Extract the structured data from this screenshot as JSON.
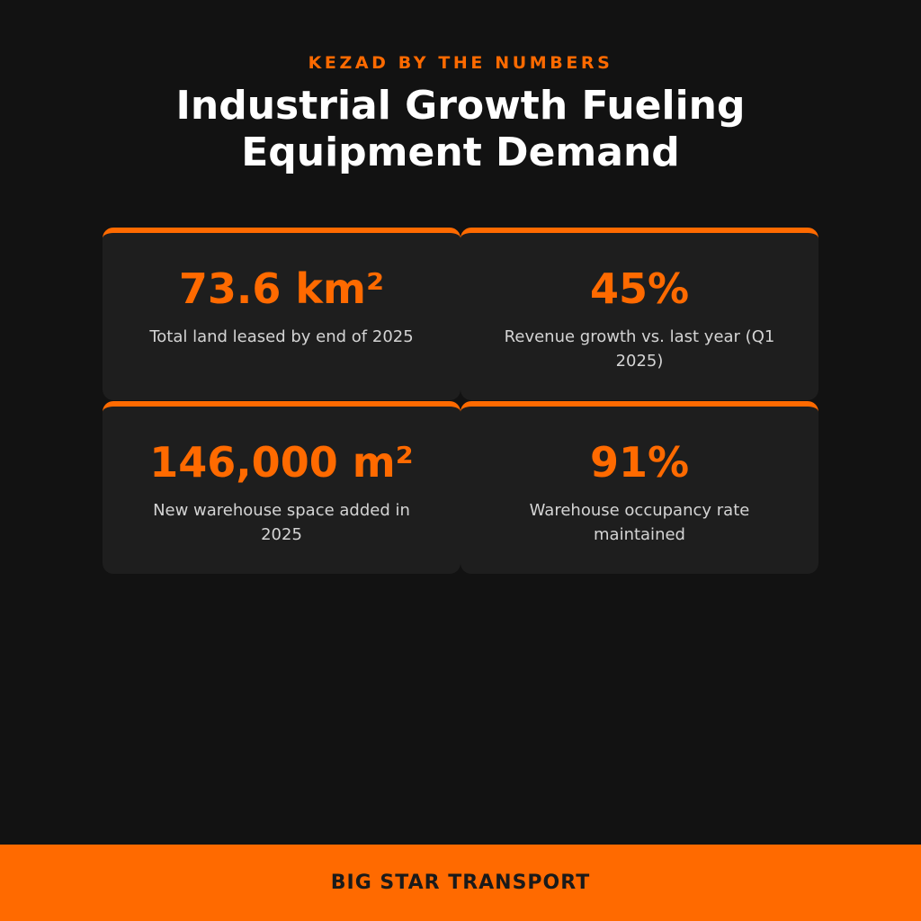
{
  "header": {
    "eyebrow": "KEZAD BY THE NUMBERS",
    "title_line1": "Industrial Growth Fueling",
    "title_line2": "Equipment Demand"
  },
  "stats": [
    {
      "value": "73.6 km²",
      "label": "Total land leased by end of 2025"
    },
    {
      "value": "45%",
      "label": "Revenue growth vs. last year (Q1 2025)"
    },
    {
      "value": "146,000 m²",
      "label": "New warehouse space added in 2025"
    },
    {
      "value": "91%",
      "label": "Warehouse occupancy rate maintained"
    }
  ],
  "footer": {
    "brand": "BIG STAR TRANSPORT"
  },
  "colors": {
    "background": "#121212",
    "card": "#1e1e1e",
    "accent": "#ff6a00",
    "title": "#ffffff",
    "label": "#d4d4d4"
  }
}
